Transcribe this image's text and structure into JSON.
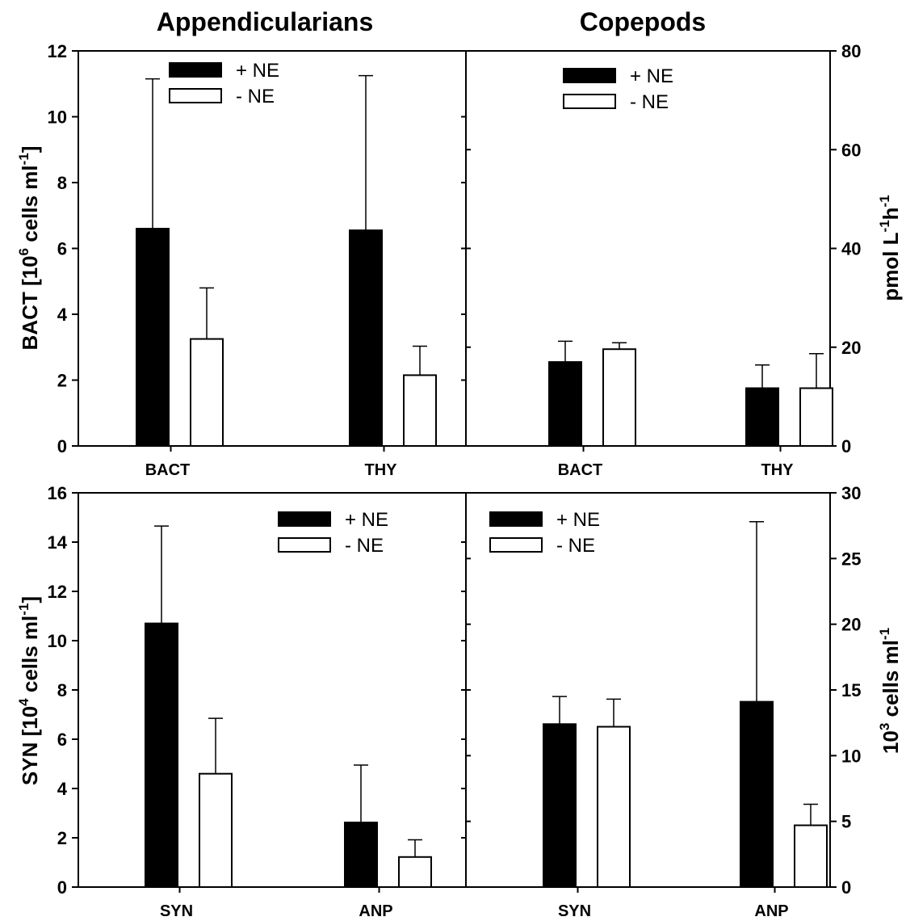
{
  "column_titles": [
    "Appendicularians",
    "Copepods"
  ],
  "legend": {
    "plus": "+ NE",
    "minus": "- NE"
  },
  "axis_labels": {
    "top_left": {
      "main": "BACT [10",
      "sup": "6",
      "tail": " cells ml",
      "sup2": "-1",
      "end": "]"
    },
    "top_right": {
      "main": "pmol L",
      "sup": "-1",
      "tail": "h",
      "sup2": "-1",
      "end": ""
    },
    "bottom_left": {
      "main": "SYN [10",
      "sup": "4",
      "tail": " cells ml",
      "sup2": "-1",
      "end": "]"
    },
    "bottom_right": {
      "main": "10",
      "sup": "3",
      "tail": " cells ml",
      "sup2": "-1",
      "end": ""
    }
  },
  "y_ticks": {
    "top_left": [
      "0",
      "2",
      "4",
      "6",
      "8",
      "10",
      "12"
    ],
    "top_right": [
      "0",
      "20",
      "40",
      "60",
      "80"
    ],
    "bottom_left": [
      "0",
      "2",
      "4",
      "6",
      "8",
      "10",
      "12",
      "14",
      "16"
    ],
    "bottom_right": [
      "0",
      "5",
      "10",
      "15",
      "20",
      "25",
      "30"
    ]
  },
  "colors": {
    "plus": "#000000",
    "minus": "#ffffff",
    "stroke": "#000000"
  },
  "chart_data": [
    {
      "type": "bar",
      "title": "Appendicularians",
      "categories": [
        "BACT",
        "THY"
      ],
      "ylabel": "BACT [10^6 cells ml^-1]",
      "ylim": [
        0,
        12
      ],
      "legend_position": "top-center",
      "series": [
        {
          "name": "+ NE",
          "values": [
            6.6,
            6.55
          ],
          "errors": [
            4.55,
            4.7
          ]
        },
        {
          "name": "- NE",
          "values": [
            3.25,
            2.15
          ],
          "errors": [
            1.55,
            0.88
          ]
        }
      ]
    },
    {
      "type": "bar",
      "title": "Copepods",
      "categories": [
        "BACT",
        "THY"
      ],
      "ylabel": "pmol L^-1h^-1",
      "ylim": [
        0,
        80
      ],
      "legend_position": "top-center",
      "series": [
        {
          "name": "+ NE",
          "values": [
            17,
            11.7
          ],
          "errors": [
            4.2,
            4.7
          ]
        },
        {
          "name": "- NE",
          "values": [
            19.6,
            11.7
          ],
          "errors": [
            1.3,
            7
          ]
        }
      ]
    },
    {
      "type": "bar",
      "categories": [
        "SYN",
        "ANP"
      ],
      "ylabel": "SYN [10^4 cells ml^-1]",
      "ylim": [
        0,
        16
      ],
      "legend_position": "top-right",
      "series": [
        {
          "name": "+ NE",
          "values": [
            10.7,
            2.62
          ],
          "errors": [
            3.95,
            2.33
          ]
        },
        {
          "name": "- NE",
          "values": [
            4.6,
            1.22
          ],
          "errors": [
            2.25,
            0.7
          ]
        }
      ]
    },
    {
      "type": "bar",
      "categories": [
        "SYN",
        "ANP"
      ],
      "ylabel": "10^3 cells ml^-1",
      "ylim": [
        0,
        30
      ],
      "legend_position": "top-left",
      "series": [
        {
          "name": "+ NE",
          "values": [
            12.4,
            14.1
          ],
          "errors": [
            2.1,
            13.7
          ]
        },
        {
          "name": "- NE",
          "values": [
            12.2,
            4.7
          ],
          "errors": [
            2.1,
            1.6
          ]
        }
      ]
    }
  ]
}
